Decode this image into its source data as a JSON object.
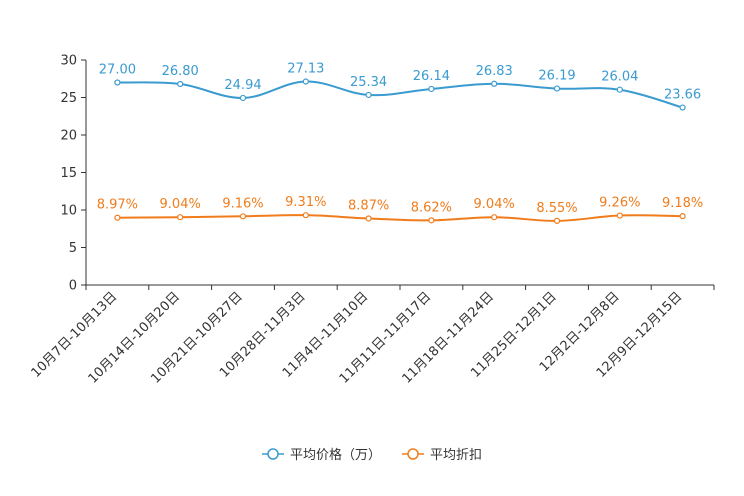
{
  "chart_data": {
    "type": "line",
    "categories": [
      "10月7日-10月13日",
      "10月14日-10月20日",
      "10月21日-10月27日",
      "10月28日-11月3日",
      "11月4日-11月10日",
      "11月11日-11月17日",
      "11月18日-11月24日",
      "11月25日-12月1日",
      "12月2日-12月8日",
      "12月9日-12月15日"
    ],
    "series": [
      {
        "name": "平均价格（万）",
        "color": "#3a9bd0",
        "values": [
          27.0,
          26.8,
          24.94,
          27.13,
          25.34,
          26.14,
          26.83,
          26.19,
          26.04,
          23.66
        ],
        "labels": [
          "27.00",
          "26.80",
          "24.94",
          "27.13",
          "25.34",
          "26.14",
          "26.83",
          "26.19",
          "26.04",
          "23.66"
        ]
      },
      {
        "name": "平均折扣",
        "color": "#f07c1c",
        "values": [
          8.97,
          9.04,
          9.16,
          9.31,
          8.87,
          8.62,
          9.04,
          8.55,
          9.26,
          9.18
        ],
        "labels": [
          "8.97%",
          "9.04%",
          "9.16%",
          "9.31%",
          "8.87%",
          "8.62%",
          "9.04%",
          "8.55%",
          "9.26%",
          "9.18%"
        ]
      }
    ],
    "ylim": [
      0,
      30
    ],
    "yticks": [
      0,
      5,
      10,
      15,
      20,
      25,
      30
    ],
    "ytick_labels": [
      "0",
      "5",
      "10",
      "15",
      "20",
      "25",
      "30"
    ],
    "legend_position": "bottom-center",
    "grid": false,
    "title": "",
    "xlabel": "",
    "ylabel": ""
  }
}
